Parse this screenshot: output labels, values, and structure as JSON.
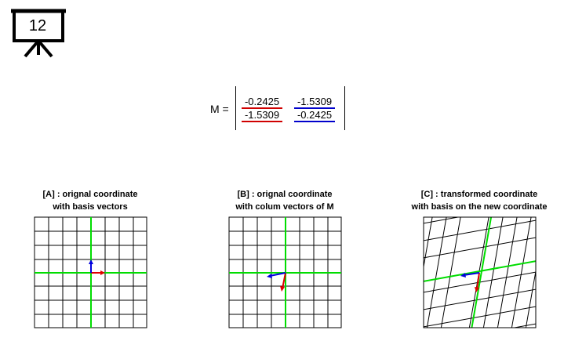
{
  "slide": {
    "number": "12"
  },
  "equation": {
    "label": "M =",
    "matrix": [
      [
        "-0.2425",
        "-1.5309"
      ],
      [
        "-1.5309",
        "-0.2425"
      ]
    ],
    "column_colors": [
      "#d00000",
      "#0000cc"
    ]
  },
  "panels": [
    {
      "title_line1": "[A] : orignal coordinate",
      "title_line2": "with basis vectors"
    },
    {
      "title_line1": "[B] : orignal coordinate",
      "title_line2": "with colum vectors of M"
    },
    {
      "title_line1": "[C] : transformed coordinate",
      "title_line2": "with basis on the new coordinate"
    }
  ],
  "colors": {
    "axis": "#00dd00",
    "x_vector": "#e00000",
    "y_vector": "#0000dd",
    "grid": "#000000"
  }
}
